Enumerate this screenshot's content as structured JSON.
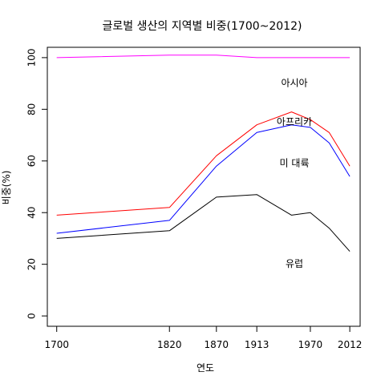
{
  "chart_data": {
    "type": "line",
    "title": "글로벌 생산의 지역별 비중(1700~2012)",
    "xlabel": "연도",
    "ylabel": "비중(%)",
    "x": [
      1700,
      1820,
      1870,
      1913,
      1950,
      1970,
      1990,
      2012
    ],
    "x_tick_labels": [
      "1700",
      "1820",
      "1870",
      "1913",
      "1970",
      "2012"
    ],
    "x_tick_values": [
      1700,
      1820,
      1870,
      1913,
      1970,
      2012
    ],
    "y_ticks": [
      0,
      20,
      40,
      60,
      80,
      100
    ],
    "xlim": [
      1690,
      2023
    ],
    "ylim": [
      -4,
      104
    ],
    "grid": false,
    "legend": "none",
    "series": [
      {
        "name": "아시아",
        "color": "#ff00ff",
        "values": [
          100,
          101,
          101,
          100,
          100,
          100,
          100,
          100
        ]
      },
      {
        "name": "아프리카",
        "color": "#ff0000",
        "values": [
          39,
          42,
          62,
          74,
          79,
          76,
          71,
          58
        ]
      },
      {
        "name": "미 대륙",
        "color": "#0000ff",
        "values": [
          32,
          37,
          58,
          71,
          74,
          73,
          67,
          54
        ]
      },
      {
        "name": "유럽",
        "color": "#000000",
        "values": [
          30,
          33,
          46,
          47,
          39,
          40,
          34,
          25
        ]
      }
    ],
    "annotations": [
      {
        "text": "아시아",
        "x": 1953,
        "y": 90
      },
      {
        "text": "아프리카",
        "x": 1953,
        "y": 75
      },
      {
        "text": "미 대륙",
        "x": 1953,
        "y": 59
      },
      {
        "text": "유럽",
        "x": 1953,
        "y": 20
      }
    ]
  }
}
